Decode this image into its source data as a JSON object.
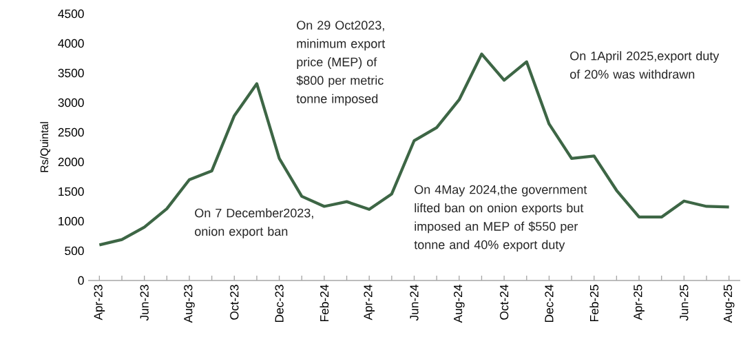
{
  "chart_data": {
    "type": "line",
    "ylabel": "Rs/Quintal",
    "categories": [
      "Apr-23",
      null,
      "Jun-23",
      null,
      "Aug-23",
      null,
      "Oct-23",
      null,
      "Dec-23",
      null,
      "Feb-24",
      null,
      "Apr-24",
      null,
      "Jun-24",
      null,
      "Aug-24",
      null,
      "Oct-24",
      null,
      "Dec-24",
      null,
      "Feb-25",
      null,
      "Apr-25",
      null,
      "Jun-25",
      null,
      "Aug-25"
    ],
    "values": [
      600,
      690,
      900,
      1210,
      1700,
      1850,
      2780,
      3320,
      2060,
      1420,
      1250,
      1330,
      1200,
      1460,
      2360,
      2580,
      3050,
      3820,
      3380,
      3690,
      2640,
      2060,
      2100,
      1520,
      1070,
      1070,
      1340,
      1250,
      1240
    ],
    "color": "#3d6645",
    "ylim": [
      0,
      4500
    ],
    "yticks": [
      0,
      500,
      1000,
      1500,
      2000,
      2500,
      3000,
      3500,
      4000,
      4500
    ],
    "marker": "none",
    "line_style": "solid",
    "annotations": [
      "On 29 Oct2023, minimum export price (MEP) of $800 per metric tonne imposed",
      "On 1April 2025,export duty of 20% was withdrawn",
      "On 7 December2023, onion export ban",
      "On 4May 2024,the government lifted ban on onion exports but imposed an MEP of $550 per tonne and 40% export duty"
    ]
  }
}
